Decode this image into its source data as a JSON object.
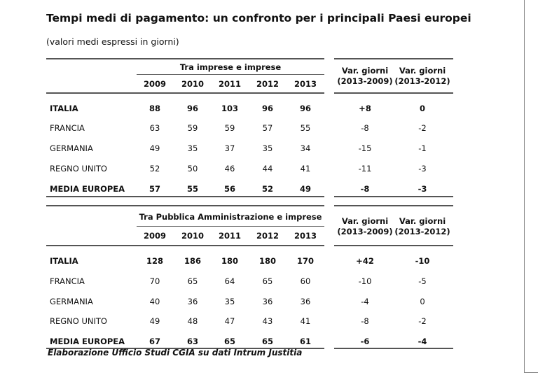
{
  "title": "Tempi medi di pagamento: un confronto per i principali Paesi europei",
  "subtitle": "(valori medi espressi in giorni)",
  "tables": [
    {
      "group_header": "Tra imprese e imprese",
      "years": [
        "2009",
        "2010",
        "2011",
        "2012",
        "2013"
      ],
      "var_headers": [
        [
          "Var. giorni",
          "(2013-2009)"
        ],
        [
          "Var. giorni",
          "(2013-2012)"
        ]
      ],
      "rows": [
        {
          "label": "ITALIA",
          "bold": true,
          "values": [
            "88",
            "96",
            "103",
            "96",
            "96"
          ],
          "var": [
            "+8",
            "0"
          ]
        },
        {
          "label": "FRANCIA",
          "bold": false,
          "values": [
            "63",
            "59",
            "59",
            "57",
            "55"
          ],
          "var": [
            "-8",
            "-2"
          ]
        },
        {
          "label": "GERMANIA",
          "bold": false,
          "values": [
            "49",
            "35",
            "37",
            "35",
            "34"
          ],
          "var": [
            "-15",
            "-1"
          ]
        },
        {
          "label": "REGNO UNITO",
          "bold": false,
          "values": [
            "52",
            "50",
            "46",
            "44",
            "41"
          ],
          "var": [
            "-11",
            "-3"
          ]
        },
        {
          "label": "MEDIA EUROPEA",
          "bold": true,
          "values": [
            "57",
            "55",
            "56",
            "52",
            "49"
          ],
          "var": [
            "-8",
            "-3"
          ]
        }
      ]
    },
    {
      "group_header": "Tra Pubblica Amministrazione e imprese",
      "years": [
        "2009",
        "2010",
        "2011",
        "2012",
        "2013"
      ],
      "var_headers": [
        [
          "Var. giorni",
          "(2013-2009)"
        ],
        [
          "Var. giorni",
          "(2013-2012)"
        ]
      ],
      "rows": [
        {
          "label": "ITALIA",
          "bold": true,
          "values": [
            "128",
            "186",
            "180",
            "180",
            "170"
          ],
          "var": [
            "+42",
            "-10"
          ]
        },
        {
          "label": "FRANCIA",
          "bold": false,
          "values": [
            "70",
            "65",
            "64",
            "65",
            "60"
          ],
          "var": [
            "-10",
            "-5"
          ]
        },
        {
          "label": "GERMANIA",
          "bold": false,
          "values": [
            "40",
            "36",
            "35",
            "36",
            "36"
          ],
          "var": [
            "-4",
            "0"
          ]
        },
        {
          "label": "REGNO UNITO",
          "bold": false,
          "values": [
            "49",
            "48",
            "47",
            "43",
            "41"
          ],
          "var": [
            "-8",
            "-2"
          ]
        },
        {
          "label": "MEDIA EUROPEA",
          "bold": true,
          "values": [
            "67",
            "63",
            "65",
            "65",
            "61"
          ],
          "var": [
            "-6",
            "-4"
          ]
        }
      ]
    }
  ],
  "footnote": "Elaborazione Ufficio Studi CGIA su dati Intrum Justitia"
}
